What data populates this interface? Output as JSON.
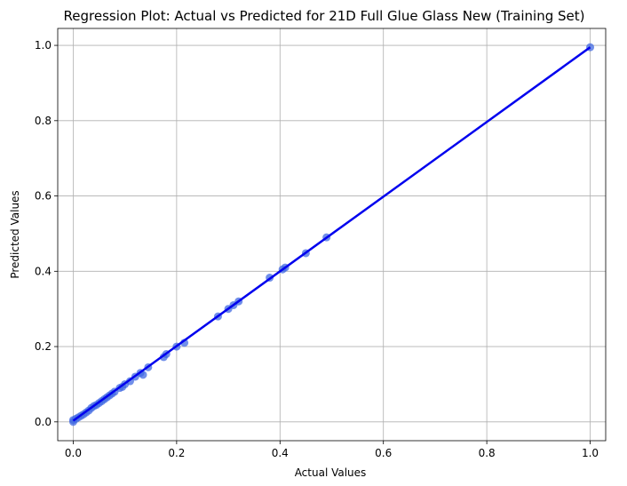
{
  "chart_data": {
    "type": "scatter",
    "title": "Regression Plot: Actual vs Predicted for 21D Full Glue Glass New (Training Set)",
    "xlabel": "Actual Values",
    "ylabel": "Predicted Values",
    "xlim": [
      -0.03,
      1.03
    ],
    "ylim": [
      -0.05,
      1.045
    ],
    "xticks": [
      0.0,
      0.2,
      0.4,
      0.6,
      0.8,
      1.0
    ],
    "xtick_labels": [
      "0.0",
      "0.2",
      "0.4",
      "0.6",
      "0.8",
      "1.0"
    ],
    "yticks": [
      0.0,
      0.2,
      0.4,
      0.6,
      0.8,
      1.0
    ],
    "ytick_labels": [
      "0.0",
      "0.2",
      "0.4",
      "0.6",
      "0.8",
      "1.0"
    ],
    "grid": true,
    "point_color": "#4169e1",
    "line_color": "#0000ee",
    "regression_line": {
      "x": [
        0.0,
        1.0
      ],
      "y": [
        0.003,
        0.995
      ]
    },
    "x": [
      0.0,
      0.0,
      0.005,
      0.01,
      0.015,
      0.02,
      0.025,
      0.03,
      0.035,
      0.04,
      0.045,
      0.05,
      0.055,
      0.06,
      0.065,
      0.07,
      0.075,
      0.08,
      0.09,
      0.095,
      0.1,
      0.11,
      0.12,
      0.13,
      0.135,
      0.145,
      0.175,
      0.18,
      0.2,
      0.215,
      0.28,
      0.3,
      0.31,
      0.32,
      0.38,
      0.405,
      0.41,
      0.45,
      0.49,
      1.0
    ],
    "y": [
      0.0,
      0.005,
      0.008,
      0.012,
      0.016,
      0.02,
      0.025,
      0.03,
      0.037,
      0.042,
      0.045,
      0.05,
      0.055,
      0.06,
      0.065,
      0.07,
      0.075,
      0.08,
      0.09,
      0.093,
      0.1,
      0.108,
      0.12,
      0.13,
      0.125,
      0.145,
      0.172,
      0.18,
      0.2,
      0.21,
      0.28,
      0.3,
      0.31,
      0.32,
      0.383,
      0.405,
      0.41,
      0.448,
      0.49,
      0.995
    ]
  }
}
